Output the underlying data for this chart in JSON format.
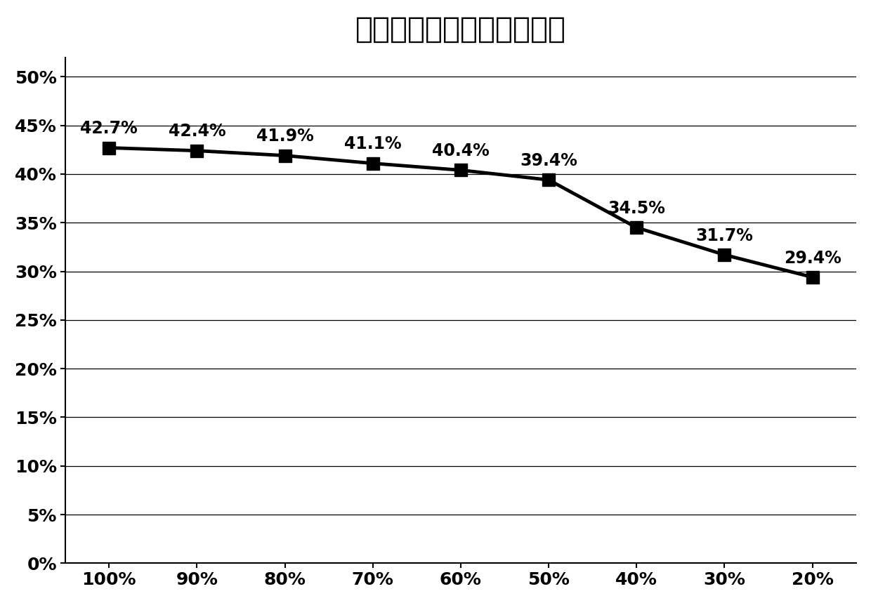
{
  "title": "机组不同出力下热效率曲线",
  "x_labels": [
    "100%",
    "90%",
    "80%",
    "70%",
    "60%",
    "50%",
    "40%",
    "30%",
    "20%"
  ],
  "y_values": [
    0.427,
    0.424,
    0.419,
    0.411,
    0.404,
    0.394,
    0.345,
    0.317,
    0.294
  ],
  "data_labels": [
    "42.7%",
    "42.4%",
    "41.9%",
    "41.1%",
    "40.4%",
    "39.4%",
    "34.5%",
    "31.7%",
    "29.4%"
  ],
  "y_ticks": [
    0.0,
    0.05,
    0.1,
    0.15,
    0.2,
    0.25,
    0.3,
    0.35,
    0.4,
    0.45,
    0.5
  ],
  "y_tick_labels": [
    "0%",
    "5%",
    "10%",
    "15%",
    "20%",
    "25%",
    "30%",
    "35%",
    "40%",
    "45%",
    "50%"
  ],
  "line_color": "#000000",
  "marker_color": "#000000",
  "background_color": "#ffffff",
  "title_fontsize": 30,
  "tick_fontsize": 18,
  "annotation_fontsize": 17
}
